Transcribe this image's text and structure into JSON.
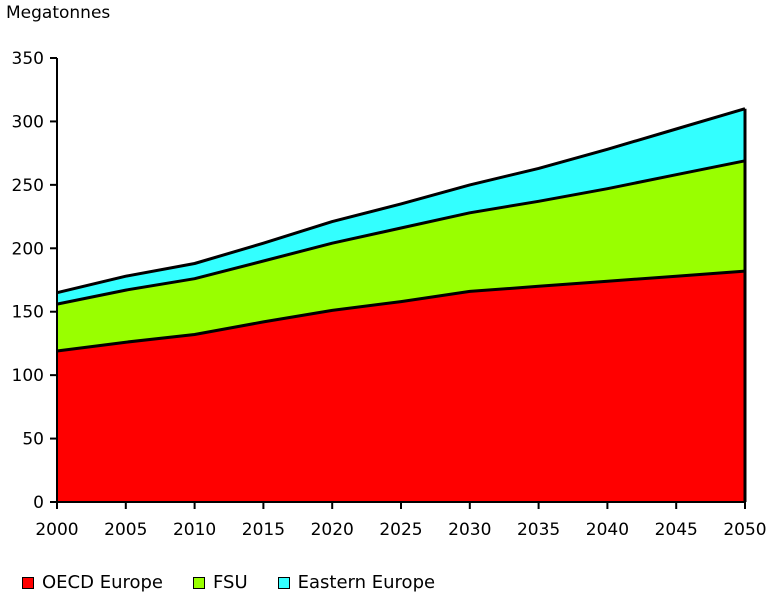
{
  "chart_data": {
    "type": "area",
    "stacked": true,
    "title": "",
    "ylabel": "Megatonnes",
    "xlabel": "",
    "x": [
      2000,
      2005,
      2010,
      2015,
      2020,
      2025,
      2030,
      2035,
      2040,
      2045,
      2050
    ],
    "ylim": [
      0,
      350
    ],
    "yticks": [
      0,
      50,
      100,
      150,
      200,
      250,
      300,
      350
    ],
    "series": [
      {
        "name": "OECD Europe",
        "color": "#ff0000",
        "values": [
          119,
          126,
          132,
          142,
          151,
          158,
          166,
          170,
          174,
          178,
          182
        ]
      },
      {
        "name": "FSU",
        "color": "#99ff00",
        "values": [
          37,
          41,
          44,
          48,
          53,
          58,
          62,
          67,
          73,
          80,
          87
        ]
      },
      {
        "name": "Eastern Europe",
        "color": "#33ffff",
        "values": [
          9,
          11,
          12,
          14,
          17,
          19,
          22,
          26,
          31,
          36,
          41
        ]
      }
    ],
    "legend_position": "bottom-left",
    "grid": false
  }
}
